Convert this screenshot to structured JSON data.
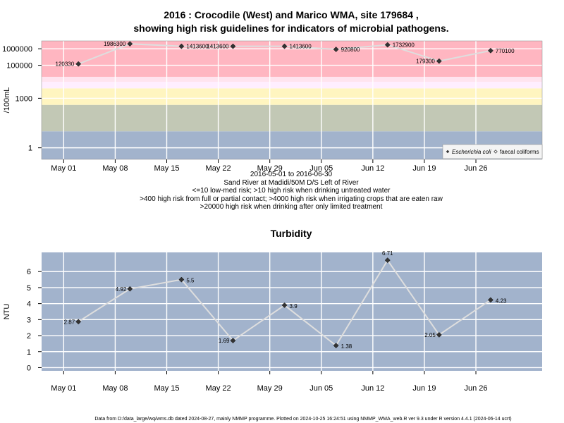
{
  "figure": {
    "title_line1": "2016 : Crocodile (West) and Marico WMA, site 179684 ,",
    "title_line2": "showing high risk guidelines for indicators of microbial pathogens.",
    "description": [
      "2016-05-01 to 2016-06-30",
      "Sand River at Madidi/50M D/S Left of River",
      "<=10 low-med risk; >10 high risk when drinking untreated water",
      ">400 high risk from full or partial contact; >4000 high risk when irrigating crops that are eaten raw",
      ">20000 high risk when drinking after only limited treatment"
    ],
    "footer": "Data from D:/data_large/wq/wms.db dated 2024-08-27, mainly NMMP programme. Plotted on 2024-10-25 16:24:51 using NMMP_WMA_web.R ver 9.3 under R version 4.4.1 (2024-06-14 ucrt)"
  },
  "colors": {
    "band_red": "#ffb6c1",
    "band_pink": "#ffe4ef",
    "band_lavender": "#ffeeff",
    "band_yellow": "#fff5c0",
    "band_sage": "#c2c8b5",
    "band_blue": "#a2b3cc",
    "line": "#dedede",
    "grid": "#ffffff",
    "point": "#333333"
  },
  "chart_data": [
    {
      "type": "line",
      "title": "",
      "ylabel": "/100mL",
      "xlabel": "",
      "y_scale": "log",
      "ylim": [
        0.2,
        3000000
      ],
      "xlim": [
        "2016-04-28",
        "2016-07-05"
      ],
      "x_ticks": [
        "2016-05-01",
        "2016-05-08",
        "2016-05-15",
        "2016-05-22",
        "2016-05-29",
        "2016-06-05",
        "2016-06-12",
        "2016-06-19",
        "2016-06-26"
      ],
      "x_tick_labels": [
        "May 01",
        "May 08",
        "May 15",
        "May 22",
        "May 29",
        "Jun 05",
        "Jun 12",
        "Jun 19",
        "Jun 26"
      ],
      "y_ticks": [
        1,
        1000,
        100000,
        1000000
      ],
      "y_tick_labels": [
        "1",
        "1000",
        "100000",
        "1000000"
      ],
      "grid": true,
      "legend_position": "bottom-right",
      "risk_bands": [
        {
          "from": 0.2,
          "to": 10,
          "color": "#a2b3cc"
        },
        {
          "from": 10,
          "to": 400,
          "color": "#c2c8b5"
        },
        {
          "from": 400,
          "to": 4000,
          "color": "#fff5c0"
        },
        {
          "from": 4000,
          "to": 10000,
          "color": "#ffeeff"
        },
        {
          "from": 10000,
          "to": 20000,
          "color": "#ffe4ef"
        },
        {
          "from": 20000,
          "to": 3000000,
          "color": "#ffb6c1"
        }
      ],
      "series": [
        {
          "name": "Escherichia coli",
          "marker": "filled-diamond",
          "points": [
            {
              "x": "2016-05-03",
              "y": 120330,
              "label": "120330"
            },
            {
              "x": "2016-05-10",
              "y": 1986300,
              "label": "1986300"
            },
            {
              "x": "2016-05-17",
              "y": 1413600,
              "label": "1413600"
            },
            {
              "x": "2016-05-24",
              "y": 1413600,
              "label": "1413600"
            },
            {
              "x": "2016-05-31",
              "y": 1413600,
              "label": "1413600"
            },
            {
              "x": "2016-06-07",
              "y": 920800,
              "label": "920800"
            },
            {
              "x": "2016-06-14",
              "y": 1732900,
              "label": "1732900"
            },
            {
              "x": "2016-06-21",
              "y": 179300,
              "label": "179300"
            },
            {
              "x": "2016-06-28",
              "y": 770100,
              "label": "770100"
            }
          ]
        },
        {
          "name": "faecal coliforms",
          "marker": "open-diamond",
          "points": []
        }
      ]
    },
    {
      "type": "line",
      "title": "Turbidity",
      "ylabel": "NTU",
      "xlabel": "",
      "ylim": [
        -0.2,
        7.2
      ],
      "xlim": [
        "2016-04-28",
        "2016-07-05"
      ],
      "x_ticks": [
        "2016-05-01",
        "2016-05-08",
        "2016-05-15",
        "2016-05-22",
        "2016-05-29",
        "2016-06-05",
        "2016-06-12",
        "2016-06-19",
        "2016-06-26"
      ],
      "x_tick_labels": [
        "May 01",
        "May 08",
        "May 15",
        "May 22",
        "May 29",
        "Jun 05",
        "Jun 12",
        "Jun 19",
        "Jun 26"
      ],
      "y_ticks": [
        0,
        1,
        2,
        3,
        4,
        5,
        6
      ],
      "y_tick_labels": [
        "0",
        "1",
        "2",
        "3",
        "4",
        "5",
        "6"
      ],
      "grid": true,
      "series": [
        {
          "name": "",
          "marker": "filled-diamond",
          "points": [
            {
              "x": "2016-05-03",
              "y": 2.87,
              "label": "2.87"
            },
            {
              "x": "2016-05-10",
              "y": 4.92,
              "label": "4.92"
            },
            {
              "x": "2016-05-17",
              "y": 5.5,
              "label": "5.5"
            },
            {
              "x": "2016-05-24",
              "y": 1.69,
              "label": "1.69"
            },
            {
              "x": "2016-05-31",
              "y": 3.9,
              "label": "3.9"
            },
            {
              "x": "2016-06-07",
              "y": 1.38,
              "label": "1.38"
            },
            {
              "x": "2016-06-14",
              "y": 6.71,
              "label": "6.71"
            },
            {
              "x": "2016-06-21",
              "y": 2.05,
              "label": "2.05"
            },
            {
              "x": "2016-06-28",
              "y": 4.23,
              "label": "4.23"
            }
          ]
        }
      ]
    }
  ]
}
